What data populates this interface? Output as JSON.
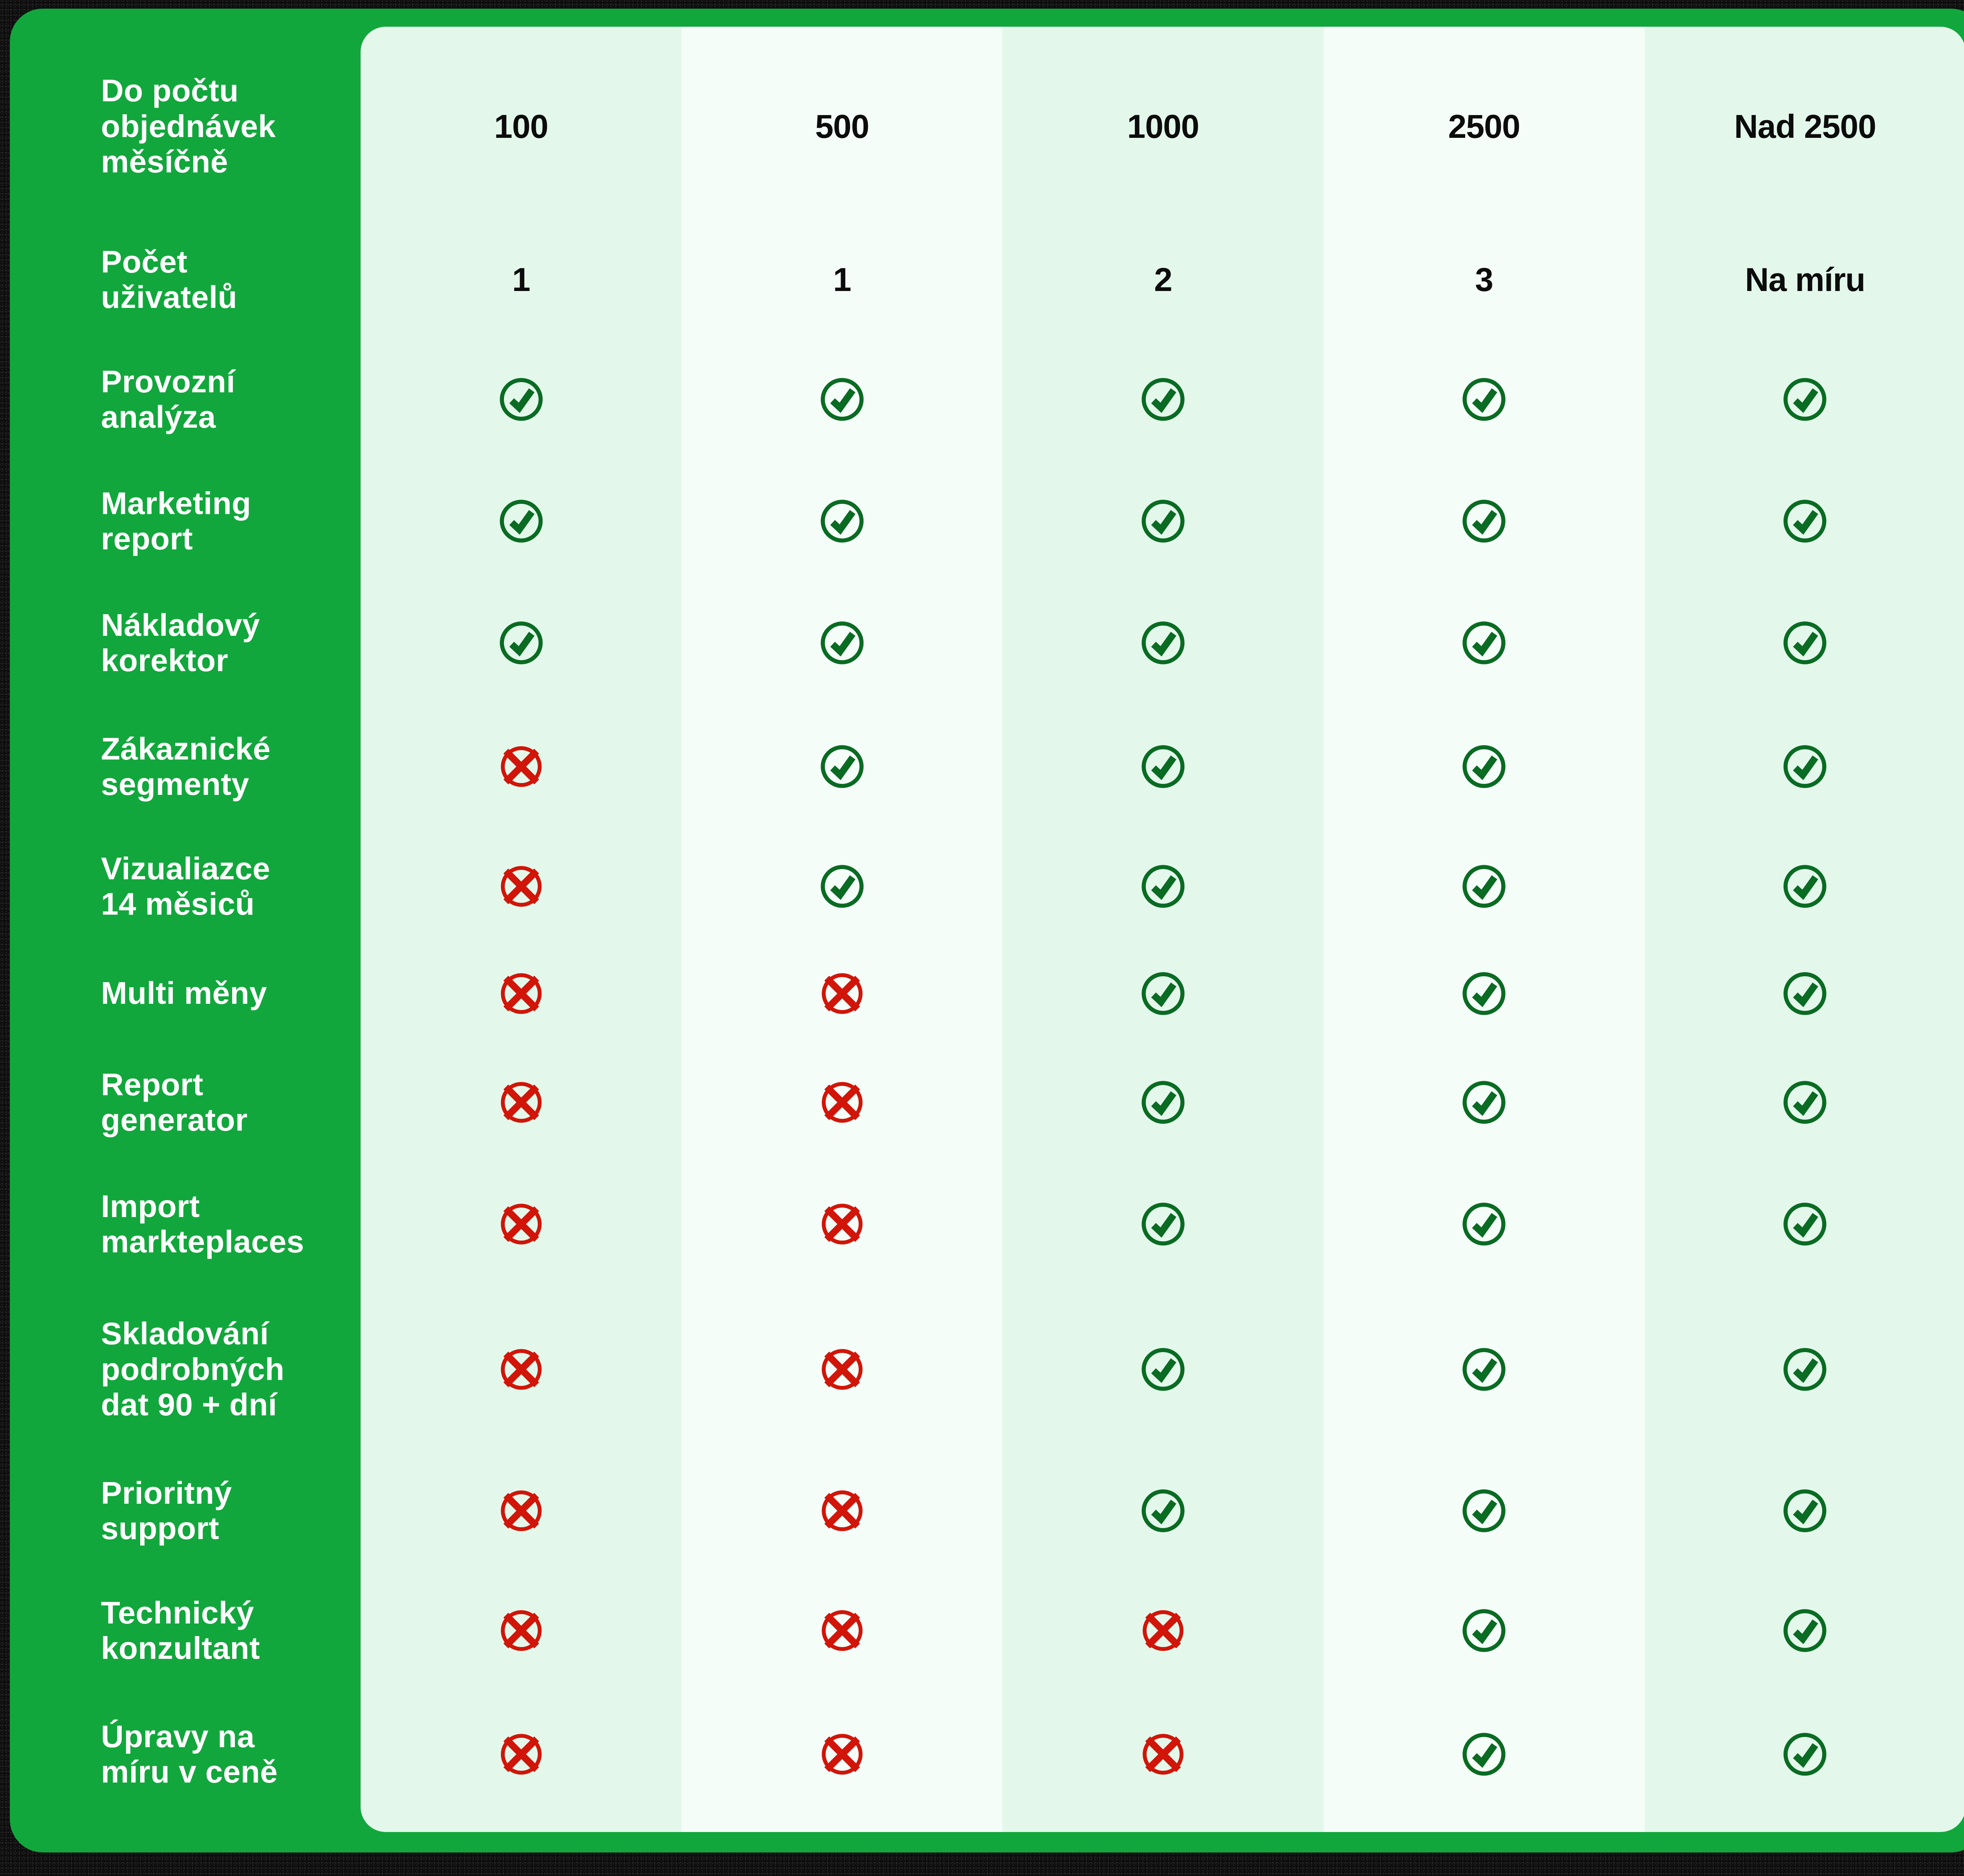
{
  "colors": {
    "brand_green": "#12a73c",
    "tint_green": "#e3f8eb",
    "tint_white": "#f5fdf8",
    "check_green": "#0a6b23",
    "cross_red": "#d11508",
    "text_dark": "#0c0c0c",
    "text_light": "#ffffff",
    "frame_dark": "#0f0f0f"
  },
  "icons": {
    "available": "check-circle",
    "unavailable": "cross-circle"
  },
  "chart_data": {
    "type": "table",
    "title": "",
    "legend_position": "none",
    "grid": false,
    "corner_label": "Do počtu\nobjednávek\nměsíčně",
    "columns": [
      "100",
      "500",
      "1000",
      "2500",
      "Nad 2500"
    ],
    "column_tints": [
      "green",
      "white",
      "green",
      "white",
      "green"
    ],
    "rows": [
      {
        "label": "Počet\nuživatelů",
        "kind": "text",
        "values": [
          "1",
          "1",
          "2",
          "3",
          "Na míru"
        ]
      },
      {
        "label": "Provozní\nanalýza",
        "kind": "check",
        "values": [
          true,
          true,
          true,
          true,
          true
        ]
      },
      {
        "label": "Marketing\nreport",
        "kind": "check",
        "values": [
          true,
          true,
          true,
          true,
          true
        ]
      },
      {
        "label": "Nákladový\nkorektor",
        "kind": "check",
        "values": [
          true,
          true,
          true,
          true,
          true
        ]
      },
      {
        "label": "Zákaznické\nsegmenty",
        "kind": "check",
        "values": [
          false,
          true,
          true,
          true,
          true
        ]
      },
      {
        "label": "Vizualiazce\n14 měsiců",
        "kind": "check",
        "values": [
          false,
          true,
          true,
          true,
          true
        ]
      },
      {
        "label": "Multi měny",
        "kind": "check",
        "values": [
          false,
          false,
          true,
          true,
          true
        ]
      },
      {
        "label": "Report\ngenerator",
        "kind": "check",
        "values": [
          false,
          false,
          true,
          true,
          true
        ]
      },
      {
        "label": "Import\nmarkteplaces",
        "kind": "check",
        "values": [
          false,
          false,
          true,
          true,
          true
        ]
      },
      {
        "label": "Skladování\npodrobných\ndat 90 + dní",
        "kind": "check",
        "values": [
          false,
          false,
          true,
          true,
          true
        ]
      },
      {
        "label": "Prioritný\nsupport",
        "kind": "check",
        "values": [
          false,
          false,
          true,
          true,
          true
        ]
      },
      {
        "label": "Technický\nkonzultant",
        "kind": "check",
        "values": [
          false,
          false,
          false,
          true,
          true
        ]
      },
      {
        "label": "Úpravy na\nmíru v ceně",
        "kind": "check",
        "values": [
          false,
          false,
          false,
          true,
          true
        ]
      }
    ]
  }
}
